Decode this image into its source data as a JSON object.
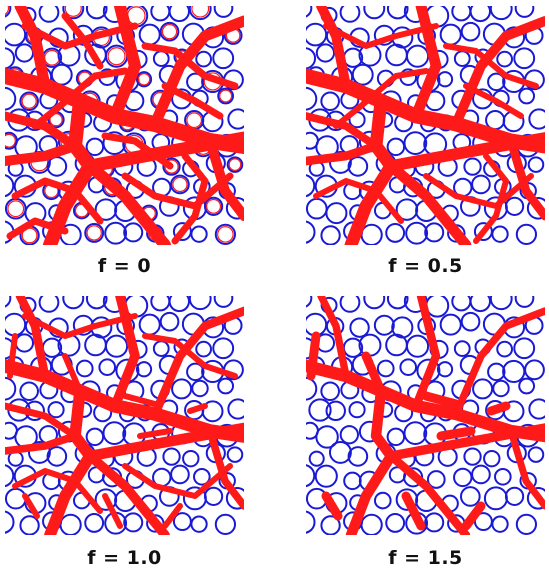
{
  "colors": {
    "particle_outline": "#1a1ad6",
    "network": "#ff1a1a",
    "background": "#ffffff"
  },
  "panels": [
    {
      "caption": "f = 0"
    },
    {
      "caption": "f = 0.5"
    },
    {
      "caption": "f = 1.0"
    },
    {
      "caption": "f = 1.5"
    }
  ]
}
